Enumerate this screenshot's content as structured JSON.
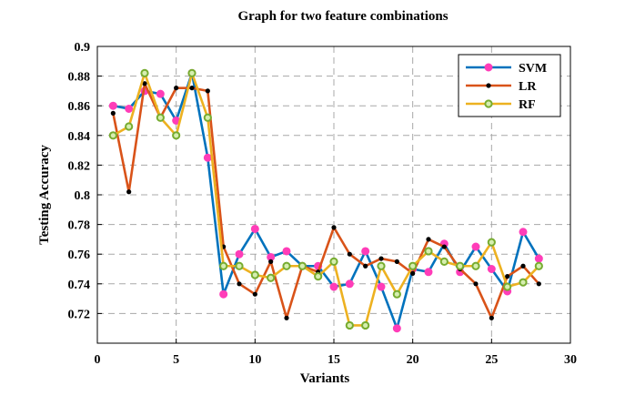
{
  "chart_data": {
    "type": "line",
    "title": "Graph for two feature combinations",
    "xlabel": "Variants",
    "ylabel": "Testing Accuracy",
    "xlim": [
      0,
      30
    ],
    "ylim": [
      0.7,
      0.9
    ],
    "xticks": [
      0,
      5,
      10,
      15,
      20,
      25,
      30
    ],
    "yticks": [
      0.72,
      0.74,
      0.76,
      0.78,
      0.8,
      0.82,
      0.84,
      0.86,
      0.88,
      0.9
    ],
    "grid": true,
    "legend_position": "top-right",
    "x": [
      1,
      2,
      3,
      4,
      5,
      6,
      7,
      8,
      9,
      10,
      11,
      12,
      13,
      14,
      15,
      16,
      17,
      18,
      19,
      20,
      21,
      22,
      23,
      24,
      25,
      26,
      27,
      28
    ],
    "series": [
      {
        "name": "SVM",
        "line_color": "#0072BD",
        "marker_color": "#FF3DB8",
        "marker": "filled-circle",
        "values": [
          0.86,
          0.858,
          0.87,
          0.868,
          0.85,
          0.882,
          0.825,
          0.733,
          0.76,
          0.777,
          0.758,
          0.762,
          0.752,
          0.752,
          0.738,
          0.74,
          0.762,
          0.738,
          0.71,
          0.75,
          0.748,
          0.767,
          0.748,
          0.765,
          0.75,
          0.735,
          0.775,
          0.757
        ]
      },
      {
        "name": "LR",
        "line_color": "#D95319",
        "marker_color": "#000000",
        "marker": "small-dot",
        "values": [
          0.855,
          0.802,
          0.875,
          0.852,
          0.872,
          0.872,
          0.87,
          0.765,
          0.74,
          0.733,
          0.755,
          0.717,
          0.752,
          0.748,
          0.778,
          0.76,
          0.752,
          0.757,
          0.755,
          0.747,
          0.77,
          0.765,
          0.75,
          0.74,
          0.717,
          0.745,
          0.752,
          0.74
        ]
      },
      {
        "name": "RF",
        "line_color": "#EDB120",
        "marker_color": "#77AC30",
        "marker": "open-circle",
        "values": [
          0.84,
          0.846,
          0.882,
          0.852,
          0.84,
          0.882,
          0.852,
          0.752,
          0.752,
          0.746,
          0.744,
          0.752,
          0.752,
          0.745,
          0.755,
          0.712,
          0.712,
          0.752,
          0.733,
          0.752,
          0.762,
          0.755,
          0.752,
          0.752,
          0.768,
          0.738,
          0.741,
          0.752
        ]
      }
    ]
  }
}
